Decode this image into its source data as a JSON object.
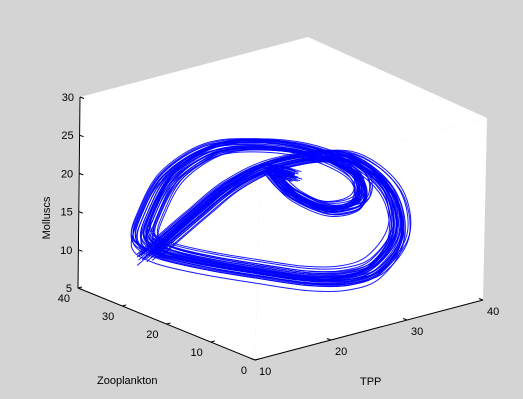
{
  "figure": {
    "background": "#d4d4d4",
    "axes_background": "#ffffff",
    "line_color": "#0000ff"
  },
  "chart_data": {
    "type": "line",
    "subtype": "3d-trajectory",
    "title": "",
    "xlabel": "TPP",
    "ylabel": "Zooplankton",
    "zlabel": "Molluscs",
    "xlim": [
      10,
      40
    ],
    "ylim": [
      0,
      40
    ],
    "zlim": [
      5,
      30
    ],
    "xticks": [
      "10",
      "20",
      "30",
      "40"
    ],
    "yticks": [
      "0",
      "10",
      "20",
      "30",
      "40"
    ],
    "zticks": [
      "5",
      "10",
      "15",
      "20",
      "25",
      "30"
    ],
    "grid": false,
    "box": true,
    "series": [
      {
        "color": "#0000ff",
        "description": "chaotic attractor trajectory",
        "x": [
          12.0,
          16.0,
          21.0,
          26.0,
          31.0,
          36.0,
          38.0,
          36.0,
          32.0,
          28.0,
          24.0,
          20.0,
          16.0,
          13.0,
          12.5,
          15.0,
          19.0,
          24.0,
          29.0,
          33.0,
          35.0,
          33.0,
          29.0,
          26.0,
          25.5,
          27.0,
          29.0
        ],
        "y": [
          28.0,
          30.0,
          32.0,
          33.0,
          31.0,
          25.0,
          18.0,
          12.0,
          10.0,
          10.0,
          12.0,
          16.0,
          21.0,
          26.0,
          30.0,
          33.0,
          35.0,
          34.0,
          31.0,
          26.0,
          20.0,
          16.0,
          16.0,
          19.0,
          23.0,
          25.0,
          24.0
        ],
        "z": [
          11.5,
          12.5,
          14.0,
          16.0,
          18.0,
          19.0,
          16.0,
          12.0,
          9.0,
          8.5,
          9.0,
          10.0,
          11.0,
          12.0,
          13.0,
          15.0,
          18.5,
          21.0,
          21.0,
          20.0,
          18.0,
          16.0,
          16.0,
          18.0,
          20.0,
          19.5,
          18.5
        ]
      }
    ]
  }
}
